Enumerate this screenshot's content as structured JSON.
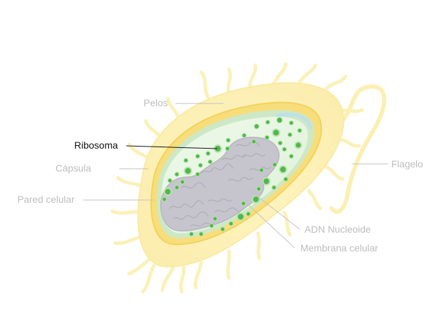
{
  "diagram": {
    "labels": {
      "pelos": "Pelos",
      "ribosoma": "Ribosoma",
      "capsula": "Cápsula",
      "pared_celular": "Pared celular",
      "flagelo": "Flagelo",
      "adn_nucleoide": "ADN Nucleoide",
      "membrana_celular": "Membrana celular"
    },
    "highlighted": "ribosoma"
  },
  "colors": {
    "capsule": "#fbf3bf",
    "capsule_edge": "#f8ea9a",
    "cell_wall": "#f6d86a",
    "membrane": "#d2ebcc",
    "cytoplasm": "#e6f6e2",
    "nucleoid": "#c9c7cf",
    "ribosome": "#4fb848",
    "highlight_line": "#111111",
    "label_gray": "#bdbdbd",
    "leader_gray": "#c2c2c2"
  }
}
